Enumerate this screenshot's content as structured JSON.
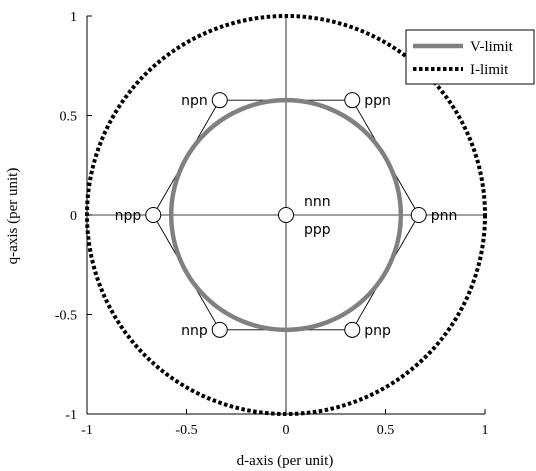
{
  "chart_data": {
    "type": "scatter",
    "xlabel": "d-axis (per unit)",
    "ylabel": "q-axis (per unit)",
    "xlim": [
      -1,
      1
    ],
    "ylim": [
      -1,
      1
    ],
    "x_ticks": [
      "-1",
      "-0.5",
      "0",
      "0.5",
      "1"
    ],
    "y_ticks": [
      "1",
      "0.5",
      "0",
      "-0.5",
      "-1"
    ],
    "x_tick_values": [
      -1,
      -0.5,
      0,
      0.5,
      1
    ],
    "y_tick_values": [
      1,
      0.5,
      0,
      -0.5,
      -1
    ],
    "series": [
      {
        "name": "V-limit",
        "shape": "circle",
        "radius": 0.577,
        "color": "#808080",
        "style": "thick-solid"
      },
      {
        "name": "I-limit",
        "shape": "circle",
        "radius": 1.0,
        "color": "#000000",
        "style": "dotted"
      }
    ],
    "hexagon": {
      "radius": 0.667,
      "color": "#000000"
    },
    "vectors": [
      {
        "label": "pnn",
        "x": 0.667,
        "y": 0.0,
        "label_pos": "right"
      },
      {
        "label": "ppn",
        "x": 0.333,
        "y": 0.577,
        "label_pos": "right"
      },
      {
        "label": "npn",
        "x": -0.333,
        "y": 0.577,
        "label_pos": "left"
      },
      {
        "label": "npp",
        "x": -0.667,
        "y": 0.0,
        "label_pos": "left"
      },
      {
        "label": "nnp",
        "x": -0.333,
        "y": -0.577,
        "label_pos": "left"
      },
      {
        "label": "pnp",
        "x": 0.333,
        "y": -0.577,
        "label_pos": "right"
      },
      {
        "label": "nnn",
        "x": 0.0,
        "y": 0.0,
        "label_pos": "right-up"
      },
      {
        "label": "ppp",
        "x": 0.0,
        "y": 0.0,
        "label_pos": "right-down",
        "marker": false
      }
    ],
    "grid": "center-cross",
    "legend_position": "top-right"
  }
}
